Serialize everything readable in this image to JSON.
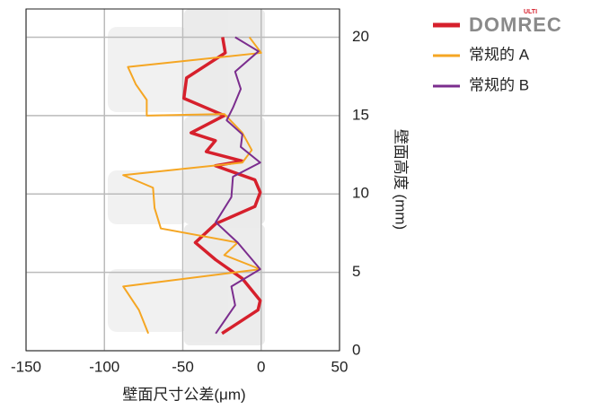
{
  "chart_data": {
    "type": "line",
    "x_label": "壁面尺寸公差(μm)",
    "y_label": "壁面高度 (mm)",
    "legend_logo_mark": "ULTI",
    "xlim": [
      -150,
      50
    ],
    "xticks": [
      -150,
      -100,
      -50,
      0,
      50
    ],
    "ylim": [
      0,
      21.8
    ],
    "yticks": [
      0,
      5,
      10,
      15,
      20
    ],
    "grid": true,
    "legend": "right",
    "y_axis_side": "right",
    "series": [
      {
        "name": "DOMREC",
        "color": "#d6202c",
        "width": 3.5,
        "x": [
          -24.6,
          -22.9,
          -47.6,
          -49.3,
          -23.5,
          -44.7,
          -29.2,
          -35,
          -12,
          -29.2,
          -4,
          -0.6,
          -4,
          -29,
          -42,
          -29,
          -12,
          -0.6,
          -2,
          -25
        ],
        "values": [
          20,
          19,
          17.4,
          16.1,
          15,
          13.9,
          13.4,
          12.7,
          12.1,
          11.8,
          10.9,
          10.1,
          9.2,
          8.1,
          6.9,
          5.8,
          4.6,
          3.2,
          2.6,
          1.1
        ]
      },
      {
        "name": "常规的 A",
        "color": "#f5a623",
        "width": 2,
        "x": [
          -7.5,
          0,
          -85,
          -80,
          -73,
          -73,
          -23.5,
          -12,
          -6,
          -12,
          -88,
          -69,
          -68,
          -64,
          -15,
          -23.5,
          -0.6,
          -88,
          -78,
          -72
        ],
        "values": [
          20,
          19,
          18.1,
          17,
          16,
          15,
          15.1,
          13.9,
          12.8,
          12,
          11.2,
          10.4,
          9.1,
          7.8,
          6.9,
          6.1,
          5.2,
          4.1,
          2.6,
          1.1
        ]
      },
      {
        "name": "常规的 B",
        "color": "#7b2d8e",
        "width": 2,
        "x": [
          -16.6,
          -1.7,
          -16.6,
          -13,
          -18,
          -22,
          -12,
          -13,
          -0.6,
          -18,
          -19,
          -29,
          -15,
          -0.6,
          -19,
          -16.6,
          -29
        ],
        "values": [
          20,
          19.1,
          17.8,
          16.7,
          15.5,
          14.7,
          13.8,
          13,
          12,
          11.1,
          9.8,
          8.2,
          6.9,
          5.2,
          4.1,
          2.9,
          1.1
        ]
      }
    ]
  }
}
